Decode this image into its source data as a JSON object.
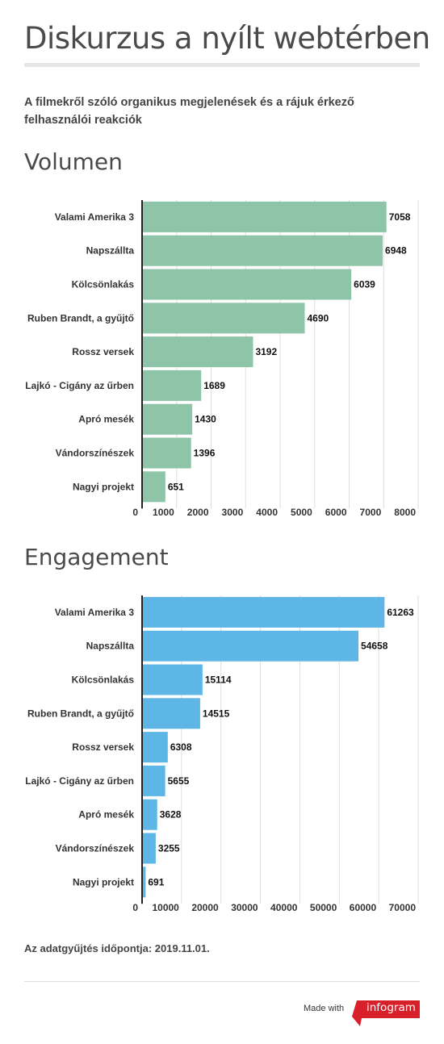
{
  "header": {
    "title": "Diskurzus a nyílt webtérben",
    "subtitle": "A filmekről szóló organikus megjelenések és a rájuk érkező felhasználói reakciók"
  },
  "footer": {
    "note": "Az adatgyűjtés időpontja: 2019.11.01.",
    "made_with": "Made with",
    "brand": "infogram"
  },
  "colors": {
    "volume_bar": "#8ec4a7",
    "engagement_bar": "#5db6e6",
    "brand_red": "#d8202b"
  },
  "chart_data": [
    {
      "type": "bar",
      "orientation": "horizontal",
      "title": "Volumen",
      "categories": [
        "Valami Amerika 3",
        "Napszállta",
        "Kölcsönlakás",
        "Ruben Brandt, a gyűjtő",
        "Rossz versek",
        "Lajkó - Cigány az űrben",
        "Apró mesék",
        "Vándorszínészek",
        "Nagyi projekt"
      ],
      "values": [
        7058,
        6948,
        6039,
        4690,
        3192,
        1689,
        1430,
        1396,
        651
      ],
      "xlim": [
        0,
        8000
      ],
      "ticks": [
        0,
        1000,
        2000,
        3000,
        4000,
        5000,
        6000,
        7000,
        8000
      ],
      "grid": true
    },
    {
      "type": "bar",
      "orientation": "horizontal",
      "title": "Engagement",
      "categories": [
        "Valami Amerika 3",
        "Napszállta",
        "Kölcsönlakás",
        "Ruben Brandt, a gyűjtő",
        "Rossz versek",
        "Lajkó - Cigány az űrben",
        "Apró mesék",
        "Vándorszínészek",
        "Nagyi projekt"
      ],
      "values": [
        61263,
        54658,
        15114,
        14515,
        6308,
        5655,
        3628,
        3255,
        691
      ],
      "xlim": [
        0,
        70000
      ],
      "ticks": [
        0,
        10000,
        20000,
        30000,
        40000,
        50000,
        60000,
        70000
      ],
      "grid": true
    }
  ]
}
